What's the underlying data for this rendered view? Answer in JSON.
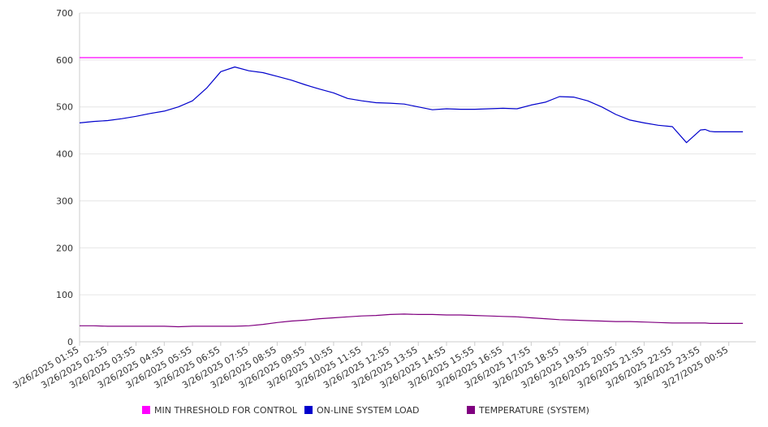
{
  "chart_data": {
    "type": "line",
    "title": "",
    "xlabel": "",
    "ylabel": "",
    "ylim": [
      0,
      700
    ],
    "y_ticks": [
      0,
      100,
      200,
      300,
      400,
      500,
      600,
      700
    ],
    "grid": "horizontal",
    "legend_position": "bottom",
    "x_ticks": [
      "3/26/2025 01:55",
      "3/26/2025 02:55",
      "3/26/2025 03:55",
      "3/26/2025 04:55",
      "3/26/2025 05:55",
      "3/26/2025 06:55",
      "3/26/2025 07:55",
      "3/26/2025 08:55",
      "3/26/2025 09:55",
      "3/26/2025 10:55",
      "3/26/2025 11:55",
      "3/26/2025 12:55",
      "3/26/2025 13:55",
      "3/26/2025 14:55",
      "3/26/2025 15:55",
      "3/26/2025 16:55",
      "3/26/2025 17:55",
      "3/26/2025 18:55",
      "3/26/2025 19:55",
      "3/26/2025 20:55",
      "3/26/2025 21:55",
      "3/26/2025 22:55",
      "3/26/2025 23:55",
      "3/27/2025 00:55"
    ],
    "x": [
      "3/26/2025 01:55",
      "3/26/2025 02:25",
      "3/26/2025 02:55",
      "3/26/2025 03:25",
      "3/26/2025 03:55",
      "3/26/2025 04:25",
      "3/26/2025 04:55",
      "3/26/2025 05:25",
      "3/26/2025 05:55",
      "3/26/2025 06:25",
      "3/26/2025 06:55",
      "3/26/2025 07:25",
      "3/26/2025 07:55",
      "3/26/2025 08:25",
      "3/26/2025 08:55",
      "3/26/2025 09:25",
      "3/26/2025 09:55",
      "3/26/2025 10:25",
      "3/26/2025 10:55",
      "3/26/2025 11:25",
      "3/26/2025 11:55",
      "3/26/2025 12:25",
      "3/26/2025 12:55",
      "3/26/2025 13:25",
      "3/26/2025 13:55",
      "3/26/2025 14:25",
      "3/26/2025 14:55",
      "3/26/2025 15:25",
      "3/26/2025 15:55",
      "3/26/2025 16:25",
      "3/26/2025 16:55",
      "3/26/2025 17:25",
      "3/26/2025 17:55",
      "3/26/2025 18:25",
      "3/26/2025 18:55",
      "3/26/2025 19:25",
      "3/26/2025 19:55",
      "3/26/2025 20:25",
      "3/26/2025 20:55",
      "3/26/2025 21:25",
      "3/26/2025 21:55",
      "3/26/2025 22:25",
      "3/26/2025 22:55",
      "3/26/2025 23:25",
      "3/26/2025 23:55",
      "3/27/2025 00:05",
      "3/27/2025 00:15",
      "3/27/2025 00:25",
      "3/27/2025 00:55",
      "3/27/2025 01:25"
    ],
    "series": [
      {
        "name": "MIN THRESHOLD FOR CONTROL",
        "color": "#ff00ff",
        "values": [
          605,
          605,
          605,
          605,
          605,
          605,
          605,
          605,
          605,
          605,
          605,
          605,
          605,
          605,
          605,
          605,
          605,
          605,
          605,
          605,
          605,
          605,
          605,
          605,
          605,
          605,
          605,
          605,
          605,
          605,
          605,
          605,
          605,
          605,
          605,
          605,
          605,
          605,
          605,
          605,
          605,
          605,
          605,
          605,
          605,
          605,
          605,
          605,
          605,
          605
        ]
      },
      {
        "name": "ON-LINE SYSTEM LOAD",
        "color": "#0000cc",
        "values": [
          466,
          469,
          471,
          475,
          480,
          486,
          491,
          500,
          513,
          540,
          575,
          585,
          577,
          573,
          565,
          557,
          547,
          538,
          530,
          518,
          513,
          509,
          508,
          506,
          500,
          494,
          496,
          495,
          495,
          496,
          497,
          496,
          504,
          510,
          522,
          521,
          513,
          500,
          484,
          472,
          466,
          461,
          458,
          424,
          451,
          452,
          448,
          447,
          447,
          447
        ]
      },
      {
        "name": "TEMPERATURE (SYSTEM)",
        "color": "#800080",
        "values": [
          34,
          34,
          33,
          33,
          33,
          33,
          33,
          32,
          33,
          33,
          33,
          33,
          34,
          37,
          41,
          44,
          46,
          49,
          51,
          53,
          55,
          56,
          58,
          59,
          58,
          58,
          57,
          57,
          56,
          55,
          54,
          53,
          51,
          49,
          47,
          46,
          45,
          44,
          43,
          43,
          42,
          41,
          40,
          40,
          40,
          40,
          39,
          39,
          39,
          39
        ]
      }
    ]
  }
}
